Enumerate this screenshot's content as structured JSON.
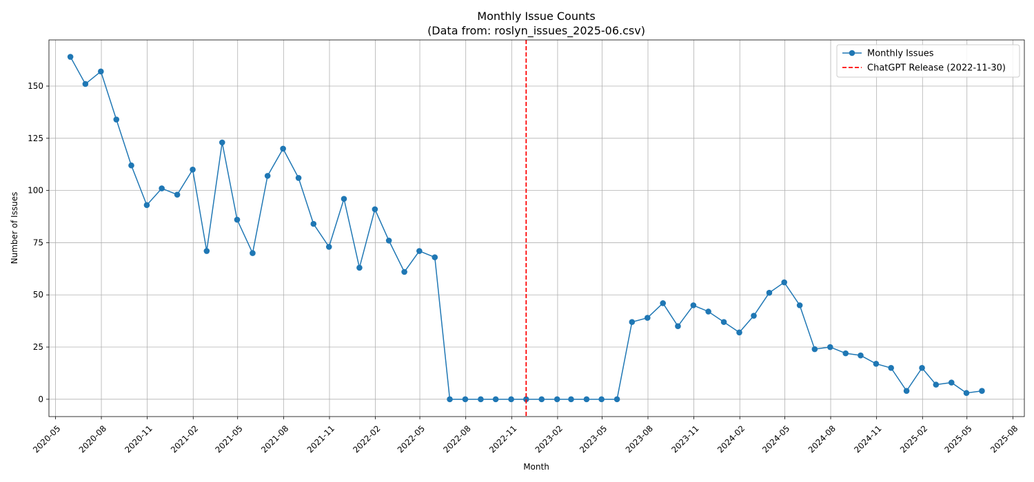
{
  "chart_data": {
    "type": "line",
    "title": "Monthly Issue Counts",
    "subtitle": "(Data from: roslyn_issues_2025-06.csv)",
    "xlabel": "Month",
    "ylabel": "Number of Issues",
    "xlim": [
      "2020-04-18",
      "2025-08-24"
    ],
    "ylim": [
      -8.3,
      172.1
    ],
    "grid": true,
    "legend_position": "top-right",
    "x_ticks": [
      "2020-05",
      "2020-08",
      "2020-11",
      "2021-02",
      "2021-05",
      "2021-08",
      "2021-11",
      "2022-02",
      "2022-05",
      "2022-08",
      "2022-11",
      "2023-02",
      "2023-05",
      "2023-08",
      "2023-11",
      "2024-02",
      "2024-05",
      "2024-08",
      "2024-11",
      "2025-02",
      "2025-05",
      "2025-08"
    ],
    "y_ticks": [
      0,
      25,
      50,
      75,
      100,
      125,
      150
    ],
    "series": [
      {
        "name": "Monthly Issues",
        "color": "#1f77b4",
        "marker": "circle",
        "x": [
          "2020-05-31",
          "2020-06-30",
          "2020-07-31",
          "2020-08-31",
          "2020-09-30",
          "2020-10-31",
          "2020-11-30",
          "2020-12-31",
          "2021-01-31",
          "2021-02-28",
          "2021-03-31",
          "2021-04-30",
          "2021-05-31",
          "2021-06-30",
          "2021-07-31",
          "2021-08-31",
          "2021-09-30",
          "2021-10-31",
          "2021-11-30",
          "2021-12-31",
          "2022-01-31",
          "2022-02-28",
          "2022-03-31",
          "2022-04-30",
          "2022-05-31",
          "2022-06-30",
          "2022-07-31",
          "2022-08-31",
          "2022-09-30",
          "2022-10-31",
          "2022-11-30",
          "2022-12-31",
          "2023-01-31",
          "2023-02-28",
          "2023-03-31",
          "2023-04-30",
          "2023-05-31",
          "2023-06-30",
          "2023-07-31",
          "2023-08-31",
          "2023-09-30",
          "2023-10-31",
          "2023-11-30",
          "2023-12-31",
          "2024-01-31",
          "2024-02-29",
          "2024-03-31",
          "2024-04-30",
          "2024-05-31",
          "2024-06-30",
          "2024-07-31",
          "2024-08-31",
          "2024-09-30",
          "2024-10-31",
          "2024-11-30",
          "2024-12-31",
          "2025-01-31",
          "2025-02-28",
          "2025-03-31",
          "2025-04-30",
          "2025-05-31"
        ],
        "values": [
          164,
          151,
          157,
          134,
          112,
          93,
          101,
          98,
          110,
          71,
          123,
          86,
          70,
          107,
          120,
          106,
          84,
          73,
          96,
          63,
          91,
          76,
          61,
          71,
          68,
          0,
          0,
          0,
          0,
          0,
          0,
          0,
          0,
          0,
          0,
          0,
          0,
          37,
          39,
          46,
          35,
          45,
          42,
          37,
          32,
          40,
          51,
          56,
          45,
          24,
          25,
          22,
          21,
          17,
          15,
          4,
          15,
          7,
          8,
          3,
          4
        ]
      }
    ],
    "annotations": [
      {
        "type": "vline",
        "name": "ChatGPT Release (2022-11-30)",
        "x": "2022-11-30",
        "color": "#ff0000",
        "style": "dashed"
      }
    ]
  }
}
